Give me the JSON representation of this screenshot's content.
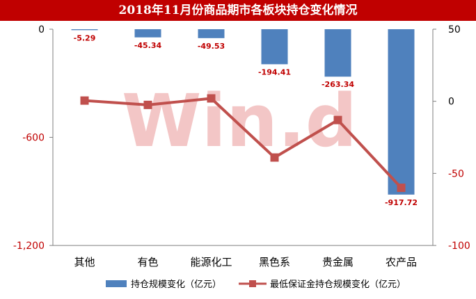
{
  "chart_data": {
    "type": "bar+line",
    "title": "2018年11月份商品期市各板块持仓变化情况",
    "categories": [
      "其他",
      "有色",
      "能源化工",
      "黑色系",
      "贵金属",
      "农产品"
    ],
    "series": [
      {
        "name": "持仓规模变化（亿元）",
        "type": "bar",
        "axis": "left",
        "color": "#4f81bd",
        "values": [
          -5.29,
          -45.34,
          -49.53,
          -194.41,
          -263.34,
          -917.72
        ],
        "data_labels": [
          "-5.29",
          "-45.34",
          "-49.53",
          "-194.41",
          "-263.34",
          "-917.72"
        ]
      },
      {
        "name": "最低保证金持仓规模变化（亿元）",
        "type": "line",
        "axis": "right",
        "color": "#c0504d",
        "values": [
          0.5,
          -2.5,
          2,
          -39,
          -13,
          -60
        ]
      }
    ],
    "y_left": {
      "min": -1200,
      "max": 0,
      "ticks": [
        "0",
        "-600",
        "-1,200"
      ],
      "tick_values": [
        0,
        -600,
        -1200
      ]
    },
    "y_right": {
      "min": -100,
      "max": 50,
      "ticks": [
        "50",
        "0",
        "-50",
        "-100"
      ],
      "tick_values": [
        50,
        0,
        -50,
        -100
      ]
    },
    "label_color": "#c00000",
    "legend_position": "bottom",
    "watermark": "Win.d",
    "grid": false
  }
}
